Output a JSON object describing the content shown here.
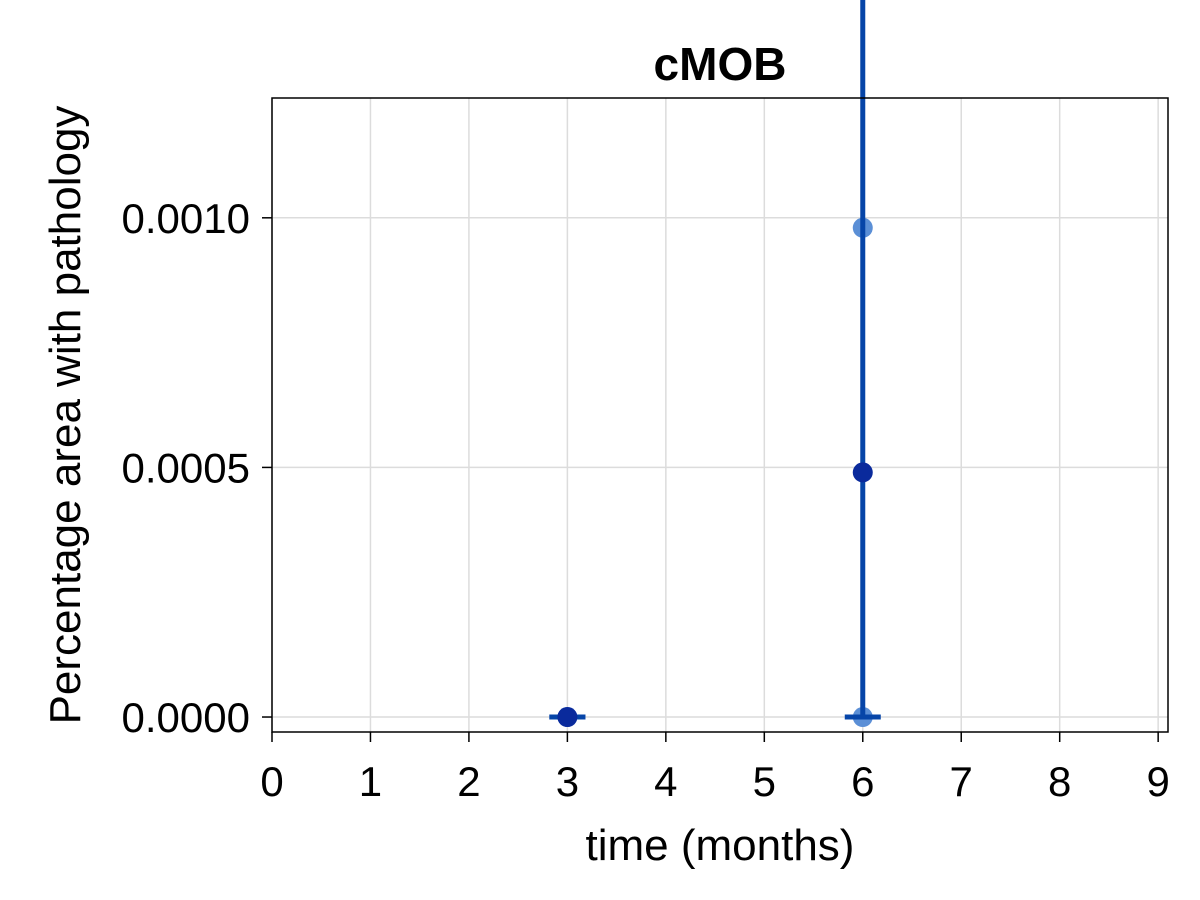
{
  "chart_data": {
    "type": "scatter",
    "title": "cMOB",
    "xlabel": "time (months)",
    "ylabel": "Percentage area with pathology",
    "xlim": [
      0,
      9.1
    ],
    "ylim": [
      -3e-05,
      0.00124
    ],
    "xticks": [
      0,
      1,
      2,
      3,
      4,
      5,
      6,
      7,
      8,
      9
    ],
    "xtick_labels": [
      "0",
      "1",
      "2",
      "3",
      "4",
      "5",
      "6",
      "7",
      "8",
      "9"
    ],
    "yticks": [
      0,
      0.0005,
      0.001
    ],
    "ytick_labels": [
      "0.0000",
      "0.0005",
      "0.0010"
    ],
    "grid": true,
    "points": [
      {
        "x": 3,
        "y": 0.0
      },
      {
        "x": 6,
        "y": 0.00098
      },
      {
        "x": 6,
        "y": 0.0
      }
    ],
    "means": [
      {
        "x": 3,
        "y": 0.0,
        "err_low": 0.0,
        "err_high": 0.0
      },
      {
        "x": 6,
        "y": 0.00049,
        "err_low": 0.00049,
        "err_high": 0.00119
      }
    ],
    "colors": {
      "points": "#5b8fd6",
      "mean": "#0a2a9c",
      "errorbar": "#0645a8",
      "grid": "#dcdcdc"
    }
  }
}
